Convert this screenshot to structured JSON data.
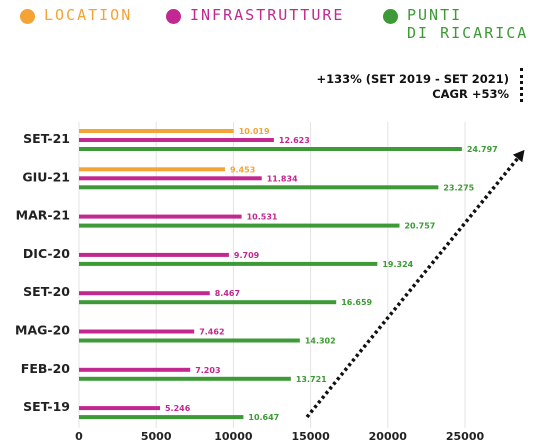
{
  "legend": [
    {
      "label": "LOCATION",
      "color": "#f4a335"
    },
    {
      "label": "INFRASTRUTTURE",
      "color": "#c2288f"
    },
    {
      "label": "PUNTI\nDI RICARICA",
      "color": "#3d9a36"
    }
  ],
  "annotation": {
    "line1": "+133% (SET 2019 - SET 2021)",
    "line2": "CAGR +53%"
  },
  "chart_data": {
    "type": "bar",
    "orientation": "horizontal",
    "categories": [
      "SET-21",
      "GIU-21",
      "MAR-21",
      "DIC-20",
      "SET-20",
      "MAG-20",
      "FEB-20",
      "SET-19"
    ],
    "series": [
      {
        "name": "LOCATION",
        "color": "#f4a335",
        "values": [
          10019,
          9453,
          null,
          null,
          null,
          null,
          null,
          null
        ],
        "labels": [
          "10.019",
          "9.453",
          "",
          "",
          "",
          "",
          "",
          ""
        ]
      },
      {
        "name": "INFRASTRUTTURE",
        "color": "#c2288f",
        "values": [
          12623,
          11834,
          10531,
          9709,
          8467,
          7462,
          7203,
          5246
        ],
        "labels": [
          "12.623",
          "11.834",
          "10.531",
          "9.709",
          "8.467",
          "7.462",
          "7.203",
          "5.246"
        ]
      },
      {
        "name": "PUNTI DI RICARICA",
        "color": "#3d9a36",
        "values": [
          24797,
          23275,
          20757,
          19324,
          16659,
          14302,
          13721,
          10647
        ],
        "labels": [
          "24.797",
          "23.275",
          "20.757",
          "19.324",
          "16.659",
          "14.302",
          "13.721",
          "10.647"
        ]
      }
    ],
    "xlim": [
      0,
      25000
    ],
    "xticks": [
      0,
      5000,
      10000,
      15000,
      20000,
      25000
    ],
    "xtick_labels": [
      "0",
      "5000",
      "10000",
      "15000",
      "20000",
      "25000"
    ],
    "grid": true,
    "legend_position": "top"
  }
}
